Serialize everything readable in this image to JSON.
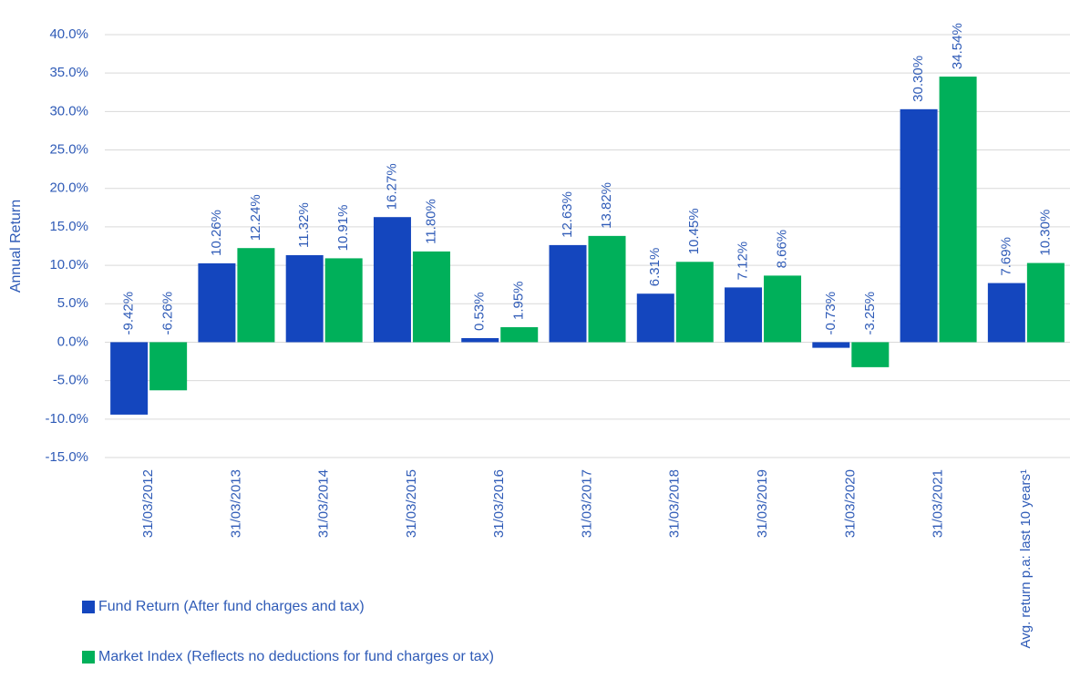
{
  "chart_data": {
    "type": "bar",
    "y_axis_label": "Annual Return",
    "categories": [
      "31/03/2012",
      "31/03/2013",
      "31/03/2014",
      "31/03/2015",
      "31/03/2016",
      "31/03/2017",
      "31/03/2018",
      "31/03/2019",
      "31/03/2020",
      "31/03/2021",
      "Avg. return p.a: last 10 years¹"
    ],
    "series": [
      {
        "name": "Fund Return (After fund charges and tax)",
        "color": "#1446be",
        "values": [
          -9.42,
          10.26,
          11.32,
          16.27,
          0.53,
          12.63,
          6.31,
          7.12,
          -0.73,
          30.3,
          7.69
        ],
        "value_labels": [
          "-9.42%",
          "10.26%",
          "11.32%",
          "16.27%",
          "0.53%",
          "12.63%",
          "6.31%",
          "7.12%",
          "-0.73%",
          "30.30%",
          "7.69%"
        ]
      },
      {
        "name": "Market Index (Reflects no deductions for fund charges or tax)",
        "color": "#00b05a",
        "values": [
          -6.26,
          12.24,
          10.91,
          11.8,
          1.95,
          13.82,
          10.45,
          8.66,
          -3.25,
          34.54,
          10.3
        ],
        "value_labels": [
          "-6.26%",
          "12.24%",
          "10.91%",
          "11.80%",
          "1.95%",
          "13.82%",
          "10.45%",
          "8.66%",
          "-3.25%",
          "34.54%",
          "10.30%"
        ]
      }
    ],
    "ylim": [
      -15,
      40
    ],
    "yticks": [
      {
        "value": -15,
        "label": "-15.0%"
      },
      {
        "value": -10,
        "label": "-10.0%"
      },
      {
        "value": -5,
        "label": "-5.0%"
      },
      {
        "value": 0,
        "label": "0.0%"
      },
      {
        "value": 5,
        "label": "5.0%"
      },
      {
        "value": 10,
        "label": "10.0%"
      },
      {
        "value": 15,
        "label": "15.0%"
      },
      {
        "value": 20,
        "label": "20.0%"
      },
      {
        "value": 25,
        "label": "25.0%"
      },
      {
        "value": 30,
        "label": "30.0%"
      },
      {
        "value": 35,
        "label": "35.0%"
      },
      {
        "value": 40,
        "label": "40.0%"
      }
    ],
    "grid": true
  }
}
